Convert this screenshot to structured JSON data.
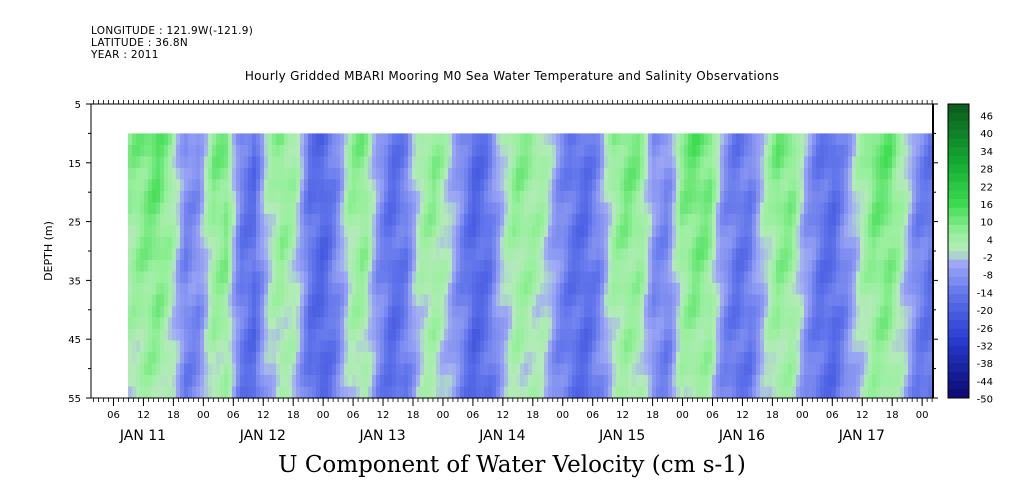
{
  "header": {
    "longitude": "LONGITUDE : 121.9W(-121.9)",
    "latitude": "LATITUDE : 36.8N",
    "year": "YEAR : 2011"
  },
  "title": "Hourly Gridded MBARI Mooring M0 Sea Water Temperature and Salinity Observations",
  "chart_data": {
    "type": "heatmap",
    "title": "U Component of Water Velocity (cm s-1)",
    "ylabel": "DEPTH (m)",
    "y_axis": {
      "range": [
        5,
        55
      ],
      "inverted": true,
      "ticks": [
        5,
        15,
        25,
        35,
        45,
        55
      ]
    },
    "x_axis": {
      "hour_ticks": [
        "06",
        "12",
        "18",
        "00",
        "06",
        "12",
        "18",
        "00",
        "06",
        "12",
        "18",
        "00",
        "06",
        "12",
        "18",
        "00",
        "06",
        "12",
        "18",
        "00",
        "06",
        "12",
        "18",
        "00",
        "06",
        "12",
        "18",
        "00"
      ],
      "day_labels": [
        "JAN 11",
        "JAN 12",
        "JAN 13",
        "JAN 14",
        "JAN 15",
        "JAN 16",
        "JAN 17"
      ]
    },
    "data_extent": {
      "depth_top": 10,
      "depth_bottom": 55
    },
    "colorbar": {
      "labels": [
        "46",
        "40",
        "34",
        "28",
        "22",
        "16",
        "10",
        "4",
        "-2",
        "-8",
        "-14",
        "-20",
        "-26",
        "-32",
        "-38",
        "-44",
        "-50"
      ],
      "range": [
        -50,
        50
      ]
    },
    "column_phase_pattern": [
      0.45,
      0.6,
      0.7,
      0.4,
      -0.3,
      -0.2,
      0.5,
      0.6,
      -0.4,
      -0.6,
      0.2,
      0.5,
      0.3,
      -0.5,
      -0.7,
      -0.3,
      0.4,
      0.55,
      -0.2,
      -0.6,
      -0.4,
      0.3,
      0.5,
      0.2,
      -0.3,
      -0.7,
      -0.5,
      0.1,
      0.5,
      0.45,
      0.3,
      -0.2,
      -0.5,
      -0.6,
      -0.3,
      0.4,
      0.6,
      0.5,
      -0.2,
      -0.3,
      0.5,
      0.7,
      0.6,
      -0.2,
      -0.5,
      -0.4,
      0.2,
      0.6,
      0.55,
      -0.1,
      -0.5,
      -0.6,
      -0.2,
      0.3,
      0.65,
      0.7,
      0.3,
      -0.3,
      -0.5
    ]
  }
}
